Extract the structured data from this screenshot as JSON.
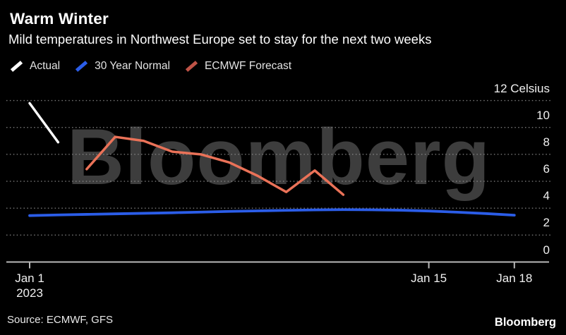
{
  "header": {
    "title": "Warm Winter",
    "subtitle": "Mild temperatures in Northwest Europe set to stay for the next two weeks"
  },
  "legend": [
    {
      "label": "Actual",
      "color": "#ffffff"
    },
    {
      "label": "30 Year Normal",
      "color": "#2b5de8"
    },
    {
      "label": "ECMWF Forecast",
      "color": "#bf5347"
    }
  ],
  "watermark": "Bloomberg",
  "footer": {
    "source": "Source: ECMWF, GFS",
    "brand": "Bloomberg"
  },
  "colors": {
    "background": "#000000",
    "axis": "#b8b8b8",
    "gridline": "#8f8f8f",
    "watermark": "#3d3d3d",
    "tick_text": "#f0f0f0"
  },
  "chart_data": {
    "type": "line",
    "title": "Warm Winter",
    "ylabel": "Celsius",
    "grid": "dotted horizontal, legend top-left, y labels on right",
    "x_axis": {
      "unit": "date",
      "tick_days": [
        1,
        15,
        18
      ],
      "tick_labels": [
        "Jan 1",
        "Jan 15",
        "Jan 18"
      ],
      "year_sub_label": "2023",
      "xlim_days": [
        1,
        18.3
      ]
    },
    "y_axis": {
      "ticks": [
        0,
        2,
        4,
        6,
        8,
        10,
        12
      ],
      "top_tick_label": "12 Celsius",
      "ylim": [
        0,
        12.2
      ]
    },
    "series": [
      {
        "name": "Actual",
        "color": "#ffffff",
        "width": 3.4,
        "days": [
          1,
          2
        ],
        "values": [
          11.8,
          8.9
        ]
      },
      {
        "name": "30 Year Normal",
        "color": "#2b5de8",
        "width": 3.8,
        "days": [
          1,
          2,
          3,
          4,
          5,
          6,
          7,
          8,
          9,
          10,
          11,
          12,
          13,
          14,
          15,
          16,
          17,
          18
        ],
        "values": [
          3.45,
          3.5,
          3.54,
          3.58,
          3.62,
          3.66,
          3.71,
          3.76,
          3.8,
          3.84,
          3.87,
          3.89,
          3.88,
          3.85,
          3.79,
          3.7,
          3.6,
          3.48
        ]
      },
      {
        "name": "ECMWF Forecast",
        "color": "#ea7258",
        "width": 3.5,
        "days": [
          3,
          4,
          5,
          6,
          7,
          8,
          9,
          10,
          11,
          12
        ],
        "values": [
          6.9,
          9.3,
          9.0,
          8.2,
          8.0,
          7.4,
          6.4,
          5.2,
          6.8,
          5.0
        ]
      }
    ]
  }
}
